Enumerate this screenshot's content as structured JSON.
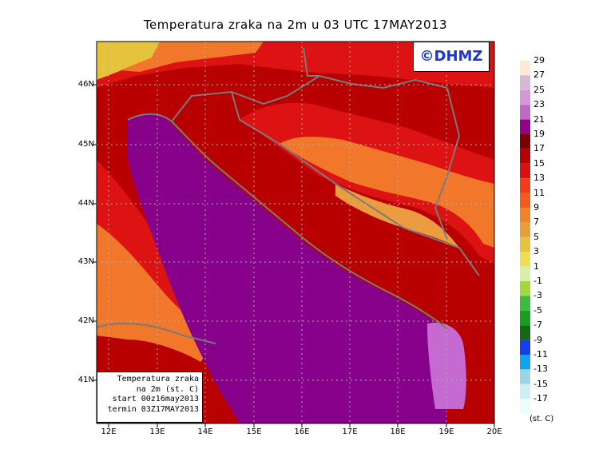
{
  "title": "Temperatura zraka na 2m u 03 UTC 17MAY2013",
  "logo": "©DHMZ",
  "info": {
    "line1": "Temperatura zraka",
    "line2": "na 2m (st. C)",
    "line3": "start 00z16may2013",
    "line4": "termin 03Z17MAY2013"
  },
  "lat_labels": [
    "46N",
    "45N",
    "44N",
    "43N",
    "42N",
    "41N"
  ],
  "lon_labels": [
    "12E",
    "13E",
    "14E",
    "15E",
    "16E",
    "17E",
    "18E",
    "19E",
    "20E"
  ],
  "legend": {
    "unit": "(st. C)",
    "labels": [
      "29",
      "27",
      "25",
      "23",
      "21",
      "19",
      "17",
      "15",
      "13",
      "11",
      "9",
      "7",
      "5",
      "3",
      "1",
      "-1",
      "-3",
      "-5",
      "-7",
      "-9",
      "-11",
      "-13",
      "-15",
      "-17"
    ],
    "colors": [
      "#fde9d6",
      "#d8b8d8",
      "#d796d7",
      "#c06ac8",
      "#930089",
      "#7c0000",
      "#b70000",
      "#dd1010",
      "#f43c1a",
      "#f65b1c",
      "#f38425",
      "#ea9e38",
      "#e6c33c",
      "#ecdf55",
      "#d8eeaa",
      "#a2d83a",
      "#3cbc3c",
      "#14a01c",
      "#136a13",
      "#1a3cf0",
      "#10a4ef",
      "#9cd6e6",
      "#cef0f4",
      "#eefcfc"
    ]
  },
  "colors": {
    "sea": "#860089",
    "sea_warm": "#c46ad0",
    "coast_warm": "#7d0000",
    "land_hot": "#b80000",
    "land_mid": "#dd1212",
    "land_orange": "#f1772a",
    "land_light": "#ec9c3e",
    "alps": "#e6c33c",
    "border": "#7a7a7a",
    "grid": "#b0b0b0"
  }
}
